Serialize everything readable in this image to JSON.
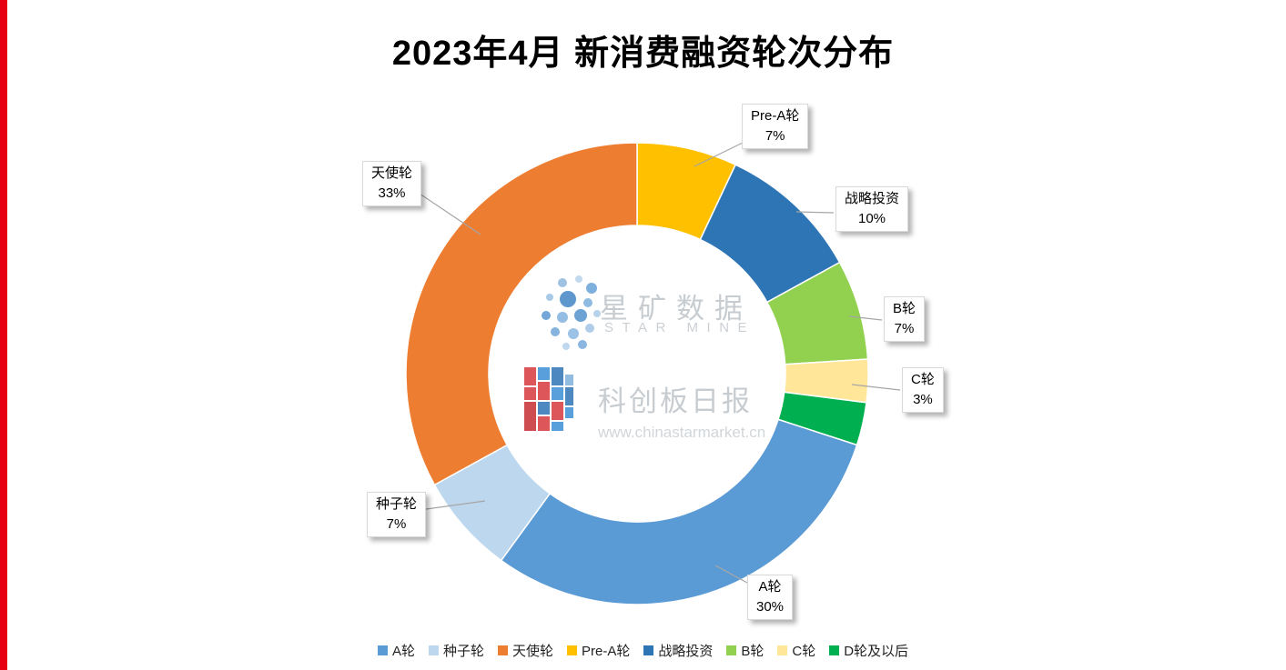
{
  "page": {
    "accent_bar_color": "#E60012",
    "background_color": "#FFFFFF"
  },
  "chart_data": {
    "type": "pie",
    "subtype": "donut",
    "title": "2023年4月 新消费融资轮次分布",
    "start_angle_deg": 0,
    "direction": "clockwise",
    "inner_radius_ratio": 0.64,
    "values_are_percent": true,
    "slices": [
      {
        "label": "Pre-A轮",
        "value": 7,
        "color": "#FFC000"
      },
      {
        "label": "战略投资",
        "value": 10,
        "color": "#2E75B6"
      },
      {
        "label": "B轮",
        "value": 7,
        "color": "#92D050"
      },
      {
        "label": "C轮",
        "value": 3,
        "color": "#FFE699"
      },
      {
        "label": "D轮及以后",
        "value": 3,
        "color": "#00B050"
      },
      {
        "label": "A轮",
        "value": 30,
        "color": "#5B9BD5"
      },
      {
        "label": "种子轮",
        "value": 7,
        "color": "#BDD7EE"
      },
      {
        "label": "天使轮",
        "value": 33,
        "color": "#ED7D31"
      }
    ],
    "legend_order": [
      "A轮",
      "种子轮",
      "天使轮",
      "Pre-A轮",
      "战略投资",
      "B轮",
      "C轮",
      "D轮及以后"
    ],
    "labels_shown": [
      "Pre-A轮",
      "战略投资",
      "B轮",
      "C轮",
      "A轮",
      "种子轮",
      "天使轮"
    ],
    "label_format": "name + percent",
    "legend_position": "bottom"
  },
  "watermarks": {
    "starmine_cn": "星矿数据",
    "starmine_en": "STAR MINE",
    "kechuang_cn": "科创板日报",
    "kechuang_url": "www.chinastarmarket.cn"
  }
}
